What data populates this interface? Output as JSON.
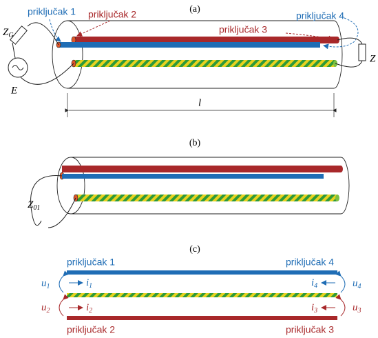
{
  "panel_a": {
    "label": "(a)",
    "ports": [
      "priključak 1",
      "priključak 2",
      "priključak 3",
      "priključak 4"
    ],
    "source_impedance": {
      "base": "Z",
      "sub": "G"
    },
    "source": "E",
    "load_impedance": "Z",
    "length": "l"
  },
  "panel_b": {
    "label": "(b)",
    "impedance": {
      "base": "Z",
      "sub": "01"
    }
  },
  "panel_c": {
    "label": "(c)",
    "ports": [
      "priključak 1",
      "priključak 2",
      "priključak 3",
      "priključak 4"
    ],
    "voltages": [
      {
        "base": "u",
        "sub": "1"
      },
      {
        "base": "u",
        "sub": "2"
      },
      {
        "base": "u",
        "sub": "3"
      },
      {
        "base": "u",
        "sub": "4"
      }
    ],
    "currents": [
      {
        "base": "i",
        "sub": "1"
      },
      {
        "base": "i",
        "sub": "2"
      },
      {
        "base": "i",
        "sub": "3"
      },
      {
        "base": "i",
        "sub": "4"
      }
    ]
  }
}
